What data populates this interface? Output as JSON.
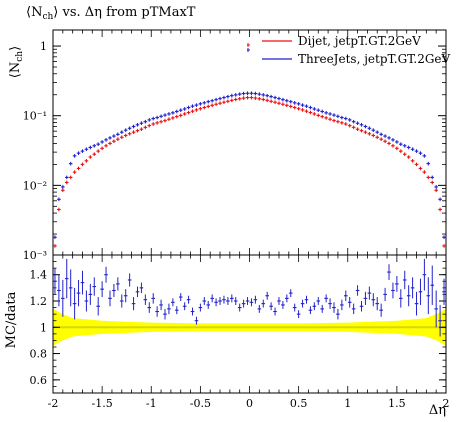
{
  "chart_data": [
    {
      "type": "scatter",
      "title": "⟨N",
      "title_sub": "ch",
      "title_rest": "⟩ vs. Δη from pTMaxT",
      "ylabel_main": "⟨N",
      "ylabel_sub": "ch",
      "ylabel_end": "⟩",
      "y_scale": "log",
      "xlim": [
        -2,
        2
      ],
      "ylim": [
        0.001,
        1.7
      ],
      "y_ticks": [
        "10⁻³",
        "10⁻²",
        "10⁻¹",
        "1"
      ],
      "y_tick_values": [
        0.001,
        0.01,
        0.1,
        1
      ],
      "legend": [
        {
          "label": "Dijet, jetpT.GT.2GeV",
          "color": "#ee1111"
        },
        {
          "label": "ThreeJets, jetpT.GT.2GeV",
          "color": "#2222cc"
        }
      ],
      "series": [
        {
          "name": "Dijet, jetpT.GT.2GeV",
          "color": "#ee1111",
          "x": [
            -1.98,
            -1.94,
            -1.9,
            -1.86,
            -1.82,
            -1.78,
            -1.74,
            -1.7,
            -1.66,
            -1.62,
            -1.58,
            -1.54,
            -1.5,
            -1.46,
            -1.42,
            -1.38,
            -1.34,
            -1.3,
            -1.26,
            -1.22,
            -1.18,
            -1.14,
            -1.1,
            -1.06,
            -1.02,
            -0.98,
            -0.94,
            -0.9,
            -0.86,
            -0.82,
            -0.78,
            -0.74,
            -0.7,
            -0.66,
            -0.62,
            -0.58,
            -0.54,
            -0.5,
            -0.46,
            -0.42,
            -0.38,
            -0.34,
            -0.3,
            -0.26,
            -0.22,
            -0.18,
            -0.14,
            -0.1,
            -0.06,
            -0.02,
            0.02,
            0.06,
            0.1,
            0.14,
            0.18,
            0.22,
            0.26,
            0.3,
            0.34,
            0.38,
            0.42,
            0.46,
            0.5,
            0.54,
            0.58,
            0.62,
            0.66,
            0.7,
            0.74,
            0.78,
            0.82,
            0.86,
            0.9,
            0.94,
            0.98,
            1.02,
            1.06,
            1.1,
            1.14,
            1.18,
            1.22,
            1.26,
            1.3,
            1.34,
            1.38,
            1.42,
            1.46,
            1.5,
            1.54,
            1.58,
            1.62,
            1.66,
            1.7,
            1.74,
            1.78,
            1.82,
            1.86,
            1.9,
            1.94,
            1.98
          ],
          "y": [
            0.00135,
            0.0045,
            0.0085,
            0.011,
            0.013,
            0.0155,
            0.0175,
            0.02,
            0.0225,
            0.0255,
            0.028,
            0.031,
            0.034,
            0.037,
            0.04,
            0.043,
            0.046,
            0.049,
            0.052,
            0.055,
            0.058,
            0.061,
            0.064,
            0.068,
            0.072,
            0.076,
            0.079,
            0.082,
            0.085,
            0.089,
            0.093,
            0.097,
            0.101,
            0.106,
            0.111,
            0.116,
            0.121,
            0.126,
            0.131,
            0.136,
            0.141,
            0.146,
            0.151,
            0.156,
            0.161,
            0.166,
            0.171,
            0.175,
            0.179,
            0.182,
            0.182,
            0.179,
            0.175,
            0.171,
            0.166,
            0.161,
            0.156,
            0.151,
            0.146,
            0.141,
            0.136,
            0.131,
            0.126,
            0.121,
            0.116,
            0.111,
            0.106,
            0.101,
            0.097,
            0.093,
            0.089,
            0.085,
            0.082,
            0.079,
            0.076,
            0.072,
            0.068,
            0.064,
            0.061,
            0.058,
            0.055,
            0.052,
            0.049,
            0.046,
            0.043,
            0.04,
            0.037,
            0.034,
            0.031,
            0.028,
            0.0255,
            0.0225,
            0.02,
            0.0175,
            0.0155,
            0.013,
            0.011,
            0.0085,
            0.0045,
            0.00135
          ]
        },
        {
          "name": "ThreeJets, jetpT.GT.2GeV",
          "color": "#2222cc",
          "x": [
            -1.98,
            -1.94,
            -1.9,
            -1.86,
            -1.82,
            -1.78,
            -1.74,
            -1.7,
            -1.66,
            -1.62,
            -1.58,
            -1.54,
            -1.5,
            -1.46,
            -1.42,
            -1.38,
            -1.34,
            -1.3,
            -1.26,
            -1.22,
            -1.18,
            -1.14,
            -1.1,
            -1.06,
            -1.02,
            -0.98,
            -0.94,
            -0.9,
            -0.86,
            -0.82,
            -0.78,
            -0.74,
            -0.7,
            -0.66,
            -0.62,
            -0.58,
            -0.54,
            -0.5,
            -0.46,
            -0.42,
            -0.38,
            -0.34,
            -0.3,
            -0.26,
            -0.22,
            -0.18,
            -0.14,
            -0.1,
            -0.06,
            -0.02,
            0.02,
            0.06,
            0.1,
            0.14,
            0.18,
            0.22,
            0.26,
            0.3,
            0.34,
            0.38,
            0.42,
            0.46,
            0.5,
            0.54,
            0.58,
            0.62,
            0.66,
            0.7,
            0.74,
            0.78,
            0.82,
            0.86,
            0.9,
            0.94,
            0.98,
            1.02,
            1.06,
            1.1,
            1.14,
            1.18,
            1.22,
            1.26,
            1.3,
            1.34,
            1.38,
            1.42,
            1.46,
            1.5,
            1.54,
            1.58,
            1.62,
            1.66,
            1.7,
            1.74,
            1.78,
            1.82,
            1.86,
            1.9,
            1.94,
            1.98
          ],
          "y": [
            0.0018,
            0.0063,
            0.0095,
            0.013,
            0.0205,
            0.0265,
            0.029,
            0.031,
            0.033,
            0.035,
            0.037,
            0.039,
            0.042,
            0.045,
            0.048,
            0.051,
            0.054,
            0.058,
            0.062,
            0.066,
            0.07,
            0.074,
            0.078,
            0.082,
            0.087,
            0.091,
            0.094,
            0.098,
            0.102,
            0.106,
            0.11,
            0.115,
            0.12,
            0.125,
            0.131,
            0.137,
            0.142,
            0.148,
            0.153,
            0.159,
            0.164,
            0.17,
            0.176,
            0.182,
            0.188,
            0.194,
            0.199,
            0.204,
            0.208,
            0.21,
            0.21,
            0.208,
            0.204,
            0.199,
            0.194,
            0.188,
            0.182,
            0.176,
            0.17,
            0.164,
            0.159,
            0.153,
            0.148,
            0.142,
            0.137,
            0.131,
            0.125,
            0.12,
            0.115,
            0.11,
            0.106,
            0.102,
            0.098,
            0.094,
            0.091,
            0.087,
            0.082,
            0.078,
            0.074,
            0.07,
            0.066,
            0.062,
            0.058,
            0.054,
            0.051,
            0.048,
            0.045,
            0.042,
            0.039,
            0.037,
            0.035,
            0.033,
            0.031,
            0.029,
            0.0265,
            0.0205,
            0.013,
            0.0095,
            0.0063,
            0.0018
          ]
        }
      ]
    },
    {
      "type": "scatter",
      "ylabel": "MC/data",
      "xlabel": "Δη",
      "xlim": [
        -2,
        2
      ],
      "ylim": [
        0.5,
        1.55
      ],
      "x_ticks": [
        "-2",
        "-1.5",
        "-1",
        "-0.5",
        "0",
        "0.5",
        "1",
        "1.5",
        "2"
      ],
      "x_tick_values": [
        -2,
        -1.5,
        -1,
        -0.5,
        0,
        0.5,
        1,
        1.5,
        2
      ],
      "y_ticks": [
        "0.6",
        "0.8",
        "1",
        "1.2",
        "1.4"
      ],
      "y_tick_values": [
        0.6,
        0.8,
        1,
        1.2,
        1.4
      ],
      "band_color": "#ffff00",
      "band": {
        "x": [
          -2,
          -1.9,
          -1.8,
          -1.5,
          -1.0,
          -0.5,
          0,
          0.5,
          1.0,
          1.5,
          1.8,
          1.9,
          2
        ],
        "lo": [
          0.86,
          0.9,
          0.93,
          0.95,
          0.965,
          0.97,
          0.97,
          0.97,
          0.965,
          0.95,
          0.93,
          0.9,
          0.86
        ],
        "hi": [
          1.14,
          1.1,
          1.07,
          1.05,
          1.035,
          1.03,
          1.03,
          1.03,
          1.035,
          1.05,
          1.07,
          1.1,
          1.14
        ]
      },
      "series": [
        {
          "name": "ThreeJets, jetpT.GT.2GeV",
          "color": "#2222cc",
          "x": [
            -1.98,
            -1.94,
            -1.9,
            -1.86,
            -1.82,
            -1.78,
            -1.74,
            -1.7,
            -1.66,
            -1.62,
            -1.58,
            -1.54,
            -1.5,
            -1.46,
            -1.42,
            -1.38,
            -1.34,
            -1.3,
            -1.26,
            -1.22,
            -1.18,
            -1.14,
            -1.1,
            -1.06,
            -1.02,
            -0.98,
            -0.94,
            -0.9,
            -0.86,
            -0.82,
            -0.78,
            -0.74,
            -0.7,
            -0.66,
            -0.62,
            -0.58,
            -0.54,
            -0.5,
            -0.46,
            -0.42,
            -0.38,
            -0.34,
            -0.3,
            -0.26,
            -0.22,
            -0.18,
            -0.14,
            -0.1,
            -0.06,
            -0.02,
            0.02,
            0.06,
            0.1,
            0.14,
            0.18,
            0.22,
            0.26,
            0.3,
            0.34,
            0.38,
            0.42,
            0.46,
            0.5,
            0.54,
            0.58,
            0.62,
            0.66,
            0.7,
            0.74,
            0.78,
            0.82,
            0.86,
            0.9,
            0.94,
            0.98,
            1.02,
            1.06,
            1.1,
            1.14,
            1.18,
            1.22,
            1.26,
            1.3,
            1.34,
            1.38,
            1.42,
            1.46,
            1.5,
            1.54,
            1.58,
            1.62,
            1.66,
            1.7,
            1.74,
            1.78,
            1.82,
            1.86,
            1.9,
            1.94,
            1.98
          ],
          "y": [
            1.35,
            1.28,
            1.22,
            1.37,
            1.3,
            1.18,
            1.26,
            1.34,
            1.2,
            1.25,
            1.31,
            1.16,
            1.29,
            1.4,
            1.22,
            1.28,
            1.33,
            1.2,
            1.24,
            1.36,
            1.18,
            1.27,
            1.3,
            1.21,
            1.15,
            1.22,
            1.12,
            1.17,
            1.1,
            1.14,
            1.19,
            1.13,
            1.23,
            1.16,
            1.21,
            1.12,
            1.05,
            1.15,
            1.2,
            1.17,
            1.22,
            1.19,
            1.2,
            1.21,
            1.2,
            1.22,
            1.2,
            1.15,
            1.18,
            1.2,
            1.19,
            1.21,
            1.14,
            1.18,
            1.24,
            1.16,
            1.12,
            1.2,
            1.17,
            1.22,
            1.26,
            1.15,
            1.1,
            1.18,
            1.21,
            1.13,
            1.16,
            1.2,
            1.14,
            1.22,
            1.18,
            1.15,
            1.1,
            1.17,
            1.24,
            1.19,
            1.14,
            1.28,
            1.16,
            1.22,
            1.26,
            1.21,
            1.18,
            1.13,
            1.25,
            1.42,
            1.28,
            1.33,
            1.22,
            1.36,
            1.24,
            1.3,
            1.18,
            1.27,
            1.4,
            1.24,
            1.32,
            1.14,
            1.05,
            1.27
          ],
          "err": [
            0.1,
            0.12,
            0.14,
            0.15,
            0.14,
            0.12,
            0.1,
            0.09,
            0.08,
            0.08,
            0.07,
            0.07,
            0.06,
            0.06,
            0.06,
            0.05,
            0.05,
            0.05,
            0.05,
            0.05,
            0.05,
            0.04,
            0.04,
            0.04,
            0.04,
            0.04,
            0.04,
            0.04,
            0.04,
            0.04,
            0.03,
            0.03,
            0.03,
            0.03,
            0.03,
            0.03,
            0.03,
            0.03,
            0.03,
            0.03,
            0.03,
            0.03,
            0.03,
            0.03,
            0.03,
            0.03,
            0.03,
            0.03,
            0.03,
            0.03,
            0.03,
            0.03,
            0.03,
            0.03,
            0.03,
            0.03,
            0.03,
            0.03,
            0.03,
            0.03,
            0.03,
            0.03,
            0.03,
            0.03,
            0.03,
            0.03,
            0.03,
            0.03,
            0.03,
            0.03,
            0.04,
            0.04,
            0.04,
            0.04,
            0.04,
            0.04,
            0.04,
            0.04,
            0.04,
            0.05,
            0.05,
            0.05,
            0.05,
            0.05,
            0.05,
            0.06,
            0.06,
            0.06,
            0.07,
            0.07,
            0.08,
            0.08,
            0.09,
            0.1,
            0.12,
            0.14,
            0.15,
            0.14,
            0.12,
            0.1
          ]
        }
      ]
    }
  ]
}
